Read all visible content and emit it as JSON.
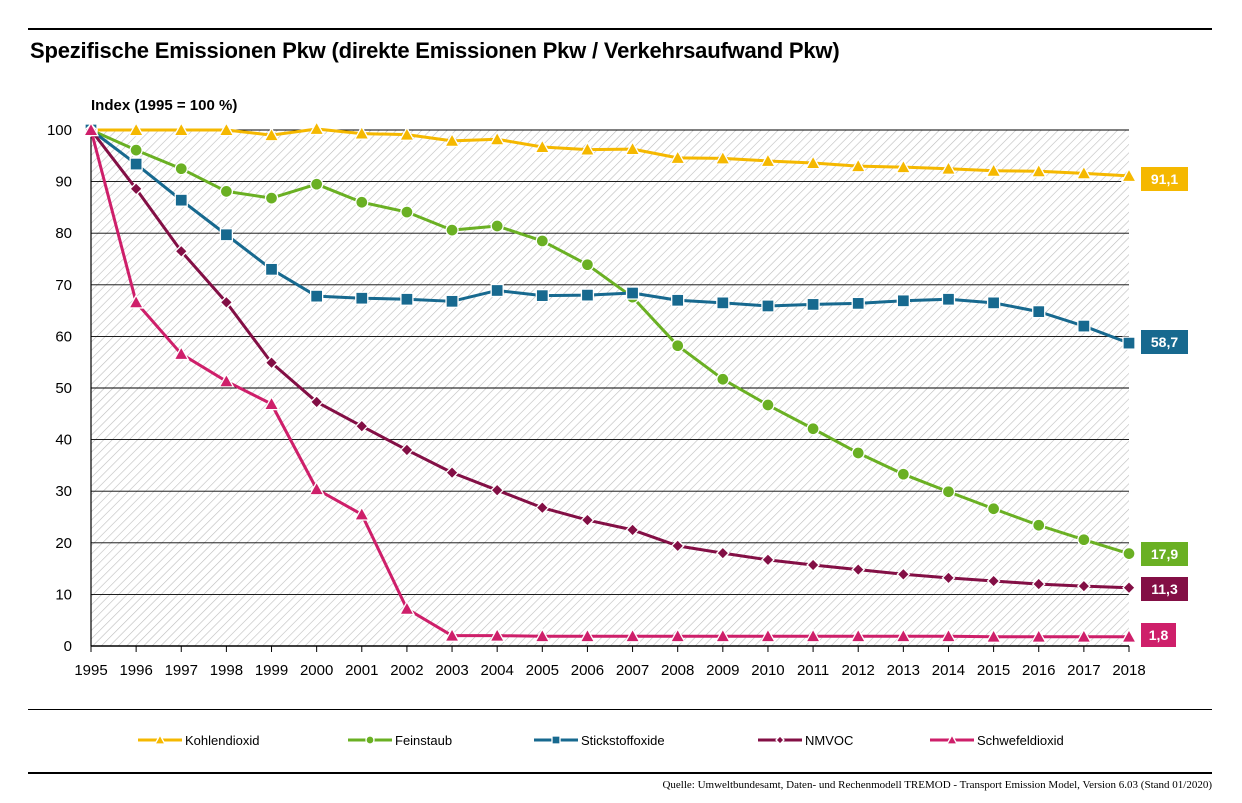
{
  "title": "Spezifische Emissionen Pkw (direkte Emissionen Pkw / Verkehrsaufwand Pkw)",
  "source": "Quelle: Umweltbundesamt, Daten- und Rechenmodell TREMOD - Transport Emission Model, Version 6.03 (Stand 01/2020)",
  "chart_data": {
    "type": "line",
    "ylabel": "Index (1995 = 100 %)",
    "xlabel": "",
    "ylim": [
      0,
      100
    ],
    "yticks": [
      0,
      10,
      20,
      30,
      40,
      50,
      60,
      70,
      80,
      90,
      100
    ],
    "grid": "horizontal",
    "background": "hatched",
    "legend_position": "bottom",
    "x": [
      1995,
      1996,
      1997,
      1998,
      1999,
      2000,
      2001,
      2002,
      2003,
      2004,
      2005,
      2006,
      2007,
      2008,
      2009,
      2010,
      2011,
      2012,
      2013,
      2014,
      2015,
      2016,
      2017,
      2018
    ],
    "series": [
      {
        "name": "Kohlendioxid",
        "color": "#F5B800",
        "marker": "triangle",
        "end_label": "91,1",
        "values": [
          100,
          100,
          100,
          100,
          99,
          100.2,
          99.3,
          99.1,
          97.9,
          98.2,
          96.7,
          96.2,
          96.3,
          94.6,
          94.5,
          94.0,
          93.6,
          93.0,
          92.8,
          92.5,
          92.1,
          92.0,
          91.6,
          91.1
        ]
      },
      {
        "name": "Feinstaub",
        "color": "#6AB023",
        "marker": "circle",
        "end_label": "17,9",
        "values": [
          100,
          96.1,
          92.5,
          88.1,
          86.8,
          89.5,
          86.0,
          84.1,
          80.6,
          81.4,
          78.5,
          73.9,
          67.6,
          58.2,
          51.7,
          46.7,
          42.1,
          37.4,
          33.3,
          29.9,
          26.6,
          23.4,
          20.6,
          17.9
        ]
      },
      {
        "name": "Stickstoffoxide",
        "color": "#17698F",
        "marker": "square",
        "end_label": "58,7",
        "values": [
          100,
          93.4,
          86.4,
          79.7,
          73.0,
          67.8,
          67.4,
          67.2,
          66.8,
          68.9,
          67.9,
          68.0,
          68.4,
          67.0,
          66.5,
          65.9,
          66.2,
          66.4,
          66.9,
          67.2,
          66.5,
          64.8,
          62.0,
          58.7
        ]
      },
      {
        "name": "NMVOC",
        "color": "#830F45",
        "marker": "diamond",
        "end_label": "11,3",
        "values": [
          100,
          88.6,
          76.5,
          66.6,
          54.9,
          47.3,
          42.6,
          38.0,
          33.6,
          30.2,
          26.8,
          24.4,
          22.5,
          19.4,
          18.0,
          16.7,
          15.7,
          14.8,
          13.9,
          13.2,
          12.6,
          12.0,
          11.6,
          11.3
        ]
      },
      {
        "name": "Schwefeldioxid",
        "color": "#CE1F6A",
        "marker": "triangle",
        "end_label": "1,8",
        "values": [
          100,
          66.6,
          56.6,
          51.3,
          46.9,
          30.4,
          25.5,
          7.2,
          2.0,
          2.0,
          1.9,
          1.9,
          1.9,
          1.9,
          1.9,
          1.9,
          1.9,
          1.9,
          1.9,
          1.9,
          1.8,
          1.8,
          1.8,
          1.8
        ]
      }
    ]
  }
}
